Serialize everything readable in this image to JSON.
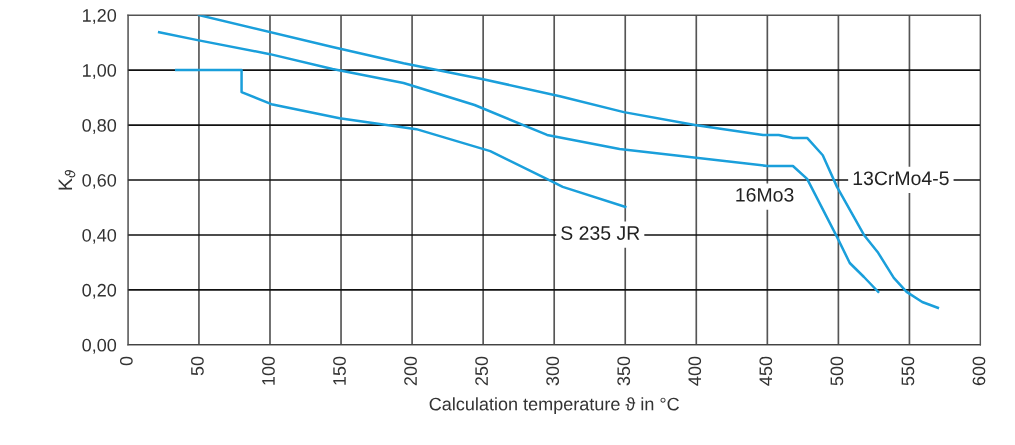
{
  "chart_data": {
    "type": "line",
    "xlabel": "Calculation temperature ϑ in °C",
    "ylabel": "K$_{ϑ}$",
    "xlim": [
      0,
      600
    ],
    "ylim": [
      0,
      1.2
    ],
    "xticks": [
      0,
      50,
      100,
      150,
      200,
      250,
      300,
      350,
      400,
      450,
      500,
      550,
      600
    ],
    "yticks": [
      {
        "value": 0,
        "label": "0,00"
      },
      {
        "value": 0.2,
        "label": "0,20"
      },
      {
        "value": 0.4,
        "label": "0,40"
      },
      {
        "value": 0.6,
        "label": "0,60"
      },
      {
        "value": 0.8,
        "label": "0,80"
      },
      {
        "value": 1.0,
        "label": "1,00"
      },
      {
        "value": 1.2,
        "label": "1,20"
      }
    ],
    "grid": true,
    "marker": "none",
    "line_style": "solid",
    "series": [
      {
        "name": "13CrMo4-5",
        "color": "#1a9fdb",
        "x": [
          50,
          144,
          194,
          250,
          304,
          349,
          399,
          447,
          458,
          468,
          478,
          489,
          499,
          518,
          528,
          539,
          548,
          559,
          570
        ],
        "values": [
          1.2,
          1.084,
          1.025,
          0.967,
          0.905,
          0.847,
          0.8,
          0.764,
          0.764,
          0.753,
          0.753,
          0.69,
          0.575,
          0.4,
          0.335,
          0.244,
          0.193,
          0.156,
          0.135
        ]
      },
      {
        "name": "16Mo3",
        "color": "#1a9fdb",
        "x": [
          22,
          49,
          100,
          144,
          194,
          244,
          295,
          346,
          450,
          468,
          478,
          499,
          508,
          518,
          528
        ],
        "values": [
          1.138,
          1.109,
          1.058,
          1.004,
          0.953,
          0.873,
          0.764,
          0.713,
          0.651,
          0.651,
          0.604,
          0.393,
          0.298,
          0.247,
          0.193
        ]
      },
      {
        "name": "S 235 JR",
        "color": "#1a9fdb",
        "x": [
          34,
          80,
          80,
          101,
          149,
          203,
          255,
          299,
          306,
          350
        ],
        "values": [
          1.0,
          1.0,
          0.92,
          0.876,
          0.825,
          0.785,
          0.705,
          0.593,
          0.575,
          0.502
        ]
      }
    ]
  }
}
